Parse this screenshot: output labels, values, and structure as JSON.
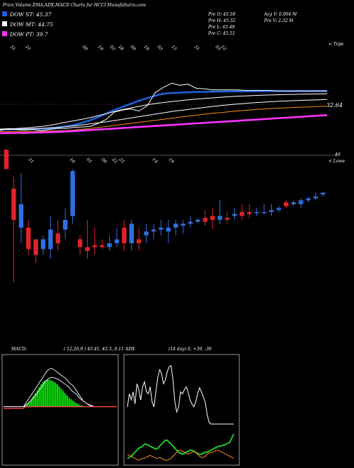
{
  "header": {
    "title": "Price,Volume,EMA,ADX,MACD Charts for HCCI MunafaSutra.com",
    "legend": [
      {
        "label": "DOW ST: 45.37",
        "color": "#1f5fd9"
      },
      {
        "label": "DOW MT: 44.75",
        "color": "#ffffff"
      },
      {
        "label": "DOW PT: 39.7",
        "color": "#ff33ff"
      }
    ],
    "prev": [
      "Pre  O: 45.50",
      "Pre  H: 45.52",
      "Pre  L: 45.49",
      "Pre  C: 45.51"
    ],
    "avg": [
      "Avg V: 0.004  M",
      "Pre  V: 2.32  M"
    ]
  },
  "top_panel": {
    "edge_label": "< Tope",
    "value_label": "32.64",
    "date_labels": [
      "31",
      "21",
      "09",
      "19",
      "03",
      "28",
      "09",
      "19",
      "03",
      "15",
      "31",
      "03",
      "12"
    ]
  },
  "price_panel": {
    "edge_label": "< Lowe",
    "level_label": "46",
    "date_labels": [
      "21",
      "16",
      "01",
      "06",
      "22",
      "25",
      "14",
      "19"
    ]
  },
  "macd": {
    "label": "MACD:",
    "values": "( 12,26,9 ) 45.41,  45.3,  0.11"
  },
  "adx": {
    "label": "ADX",
    "values": "(14  day) 0,  +39,  -39"
  },
  "chart_data": [
    {
      "type": "line",
      "name": "EMA panel",
      "series": [
        {
          "color": "#1f5fd9",
          "values": [
            0.0,
            0.2,
            0.4,
            0.5,
            0.8,
            1.5,
            2.5,
            4,
            6,
            9,
            13,
            18,
            24,
            31,
            38,
            44,
            50,
            56,
            61,
            66,
            69.8,
            70.8,
            71.6,
            72.3,
            72.9,
            73.3,
            73.6,
            73.8,
            74.0,
            74.1,
            74.2,
            74.3,
            74.4,
            74.5,
            74.5,
            74.6,
            74.6,
            74.7,
            74.7,
            74.8,
            74.8
          ]
        },
        {
          "color": "#ffffff",
          "values": [
            1,
            1.5,
            2,
            3,
            4.5,
            6,
            8,
            11,
            14,
            17,
            20,
            23,
            27,
            31,
            35,
            39,
            42,
            45,
            48,
            50.5,
            52.5,
            54.3,
            56,
            57.6,
            59,
            60.3,
            61.5,
            62.7,
            63.7,
            64.6,
            65.4,
            66.1,
            66.7,
            67.2,
            67.6,
            68,
            68.3,
            68.6,
            68.9,
            69.1,
            69.3
          ]
        },
        {
          "color": "#ffffff",
          "values": [
            0,
            0.3,
            0.6,
            1,
            1.5,
            2.2,
            3,
            4,
            5.3,
            7,
            9,
            11,
            13,
            15,
            17.5,
            20,
            22.5,
            25,
            27.5,
            30,
            32.5,
            35,
            37,
            39,
            41,
            43,
            44.8,
            46.5,
            48,
            49.5,
            50.8,
            52,
            53,
            54,
            54.8,
            55.5,
            56.2,
            56.8,
            57.3,
            57.8,
            58.3
          ]
        },
        {
          "color": "#ff8c1a",
          "values": [
            -4,
            -4,
            -4,
            -4,
            -4,
            -3.5,
            -3,
            -2.5,
            -2,
            -1,
            0.5,
            2,
            4,
            6,
            8,
            10,
            12,
            14,
            16,
            18,
            20,
            22,
            24,
            26,
            28,
            30,
            31.5,
            33,
            34.5,
            36,
            37.3,
            38.5,
            39.6,
            40.6,
            41.5,
            42.3,
            43,
            43.6,
            44.2,
            44.8,
            45.3
          ]
        },
        {
          "color": "#ff33ff",
          "values": [
            -7,
            -6.8,
            -6.6,
            -6.4,
            -6,
            -5.6,
            -5.2,
            -4.6,
            -4,
            -3,
            -2,
            -1,
            0,
            1,
            2,
            3,
            4,
            5,
            6,
            7,
            8,
            9,
            10,
            11,
            12,
            13,
            14,
            15,
            16,
            17,
            18,
            19,
            20,
            21,
            22,
            23,
            24,
            25,
            26,
            27,
            28
          ]
        },
        {
          "color": "#ffffff",
          "values": [
            -2,
            2,
            0,
            -1,
            0,
            -2,
            0,
            2,
            2,
            4,
            5,
            6,
            12,
            20,
            34,
            38,
            40,
            36,
            46,
            72,
            82,
            90,
            86,
            88,
            80,
            79,
            77,
            77,
            77,
            77,
            76,
            76,
            76,
            76,
            75,
            75,
            75,
            75,
            75,
            75,
            75
          ]
        }
      ],
      "ylim": [
        -10,
        100
      ]
    },
    {
      "type": "candlestick",
      "name": "Price panel",
      "candles": [
        {
          "o": 66,
          "c": 76,
          "h": 76,
          "l": 66,
          "color": "red"
        },
        {
          "o": 56,
          "c": 40,
          "h": 62,
          "l": 8,
          "color": "red"
        },
        {
          "o": 36,
          "c": 48,
          "h": 64,
          "l": 28,
          "color": "blue"
        },
        {
          "o": 36,
          "c": 25,
          "h": 40,
          "l": 22,
          "color": "red"
        },
        {
          "o": 22,
          "c": 30,
          "h": 30,
          "l": 18,
          "color": "red"
        },
        {
          "o": 25,
          "c": 30,
          "h": 32,
          "l": 22,
          "color": "blue"
        },
        {
          "o": 25,
          "c": 35,
          "h": 42,
          "l": 20,
          "color": "blue"
        },
        {
          "o": 28,
          "c": 33,
          "h": 40,
          "l": 24,
          "color": "red"
        },
        {
          "o": 35,
          "c": 40,
          "h": 46,
          "l": 30,
          "color": "blue"
        },
        {
          "o": 42,
          "c": 65,
          "h": 66,
          "l": 38,
          "color": "blue"
        },
        {
          "o": 30,
          "c": 26,
          "h": 32,
          "l": 22,
          "color": "red"
        },
        {
          "o": 24,
          "c": 26,
          "h": 40,
          "l": 20,
          "color": "red"
        },
        {
          "o": 26,
          "c": 27,
          "h": 36,
          "l": 22,
          "color": "red"
        },
        {
          "o": 27,
          "c": 26,
          "h": 30,
          "l": 25,
          "color": "red"
        },
        {
          "o": 26,
          "c": 28,
          "h": 32,
          "l": 24,
          "color": "blue"
        },
        {
          "o": 28,
          "c": 30,
          "h": 36,
          "l": 26,
          "color": "blue"
        },
        {
          "o": 36,
          "c": 28,
          "h": 40,
          "l": 24,
          "color": "red"
        },
        {
          "o": 28,
          "c": 38,
          "h": 40,
          "l": 24,
          "color": "blue"
        },
        {
          "o": 28,
          "c": 30,
          "h": 36,
          "l": 24,
          "color": "red"
        },
        {
          "o": 32,
          "c": 34,
          "h": 38,
          "l": 28,
          "color": "blue"
        },
        {
          "o": 34,
          "c": 35,
          "h": 38,
          "l": 30,
          "color": "blue"
        },
        {
          "o": 35,
          "c": 36,
          "h": 40,
          "l": 32,
          "color": "blue"
        },
        {
          "o": 34,
          "c": 36,
          "h": 40,
          "l": 28,
          "color": "blue"
        },
        {
          "o": 36,
          "c": 38,
          "h": 40,
          "l": 32,
          "color": "blue"
        },
        {
          "o": 37,
          "c": 38,
          "h": 40,
          "l": 33,
          "color": "blue"
        },
        {
          "o": 38,
          "c": 39,
          "h": 42,
          "l": 36,
          "color": "blue"
        },
        {
          "o": 40,
          "c": 39,
          "h": 41,
          "l": 38,
          "color": "blue"
        },
        {
          "o": 41,
          "c": 39,
          "h": 45,
          "l": 37,
          "color": "red"
        },
        {
          "o": 40,
          "c": 42,
          "h": 46,
          "l": 35,
          "color": "red"
        },
        {
          "o": 40,
          "c": 42,
          "h": 50,
          "l": 38,
          "color": "blue"
        },
        {
          "o": 41,
          "c": 40,
          "h": 44,
          "l": 38,
          "color": "red"
        },
        {
          "o": 42,
          "c": 43,
          "h": 46,
          "l": 40,
          "color": "blue"
        },
        {
          "o": 44,
          "c": 42,
          "h": 48,
          "l": 40,
          "color": "red"
        },
        {
          "o": 43,
          "c": 44,
          "h": 48,
          "l": 41,
          "color": "red"
        },
        {
          "o": 44,
          "c": 44,
          "h": 46,
          "l": 42,
          "color": "blue"
        },
        {
          "o": 44,
          "c": 44,
          "h": 48,
          "l": 43,
          "color": "blue"
        },
        {
          "o": 44,
          "c": 45,
          "h": 48,
          "l": 42,
          "color": "blue"
        },
        {
          "o": 45,
          "c": 46,
          "h": 47,
          "l": 44,
          "color": "blue"
        },
        {
          "o": 47,
          "c": 49,
          "h": 50,
          "l": 46,
          "color": "red"
        },
        {
          "o": 48,
          "c": 49,
          "h": 50,
          "l": 47,
          "color": "blue"
        },
        {
          "o": 48,
          "c": 50,
          "h": 51,
          "l": 46,
          "color": "blue"
        },
        {
          "o": 50,
          "c": 51,
          "h": 52,
          "l": 49,
          "color": "blue"
        },
        {
          "o": 51,
          "c": 52,
          "h": 54,
          "l": 50,
          "color": "blue"
        },
        {
          "o": 53,
          "c": 54,
          "h": 54,
          "l": 52,
          "color": "blue"
        }
      ],
      "ylim": [
        0,
        80
      ]
    },
    {
      "type": "area",
      "name": "MACD panel",
      "series": [
        {
          "color": "#00dd00",
          "values": [
            0,
            0,
            0,
            0,
            0,
            0,
            0,
            0,
            0,
            0,
            0,
            1,
            2,
            3.5,
            5,
            7,
            9,
            11,
            13,
            15,
            16.5,
            17.5,
            18,
            18,
            17.5,
            17,
            16,
            15,
            13.5,
            12,
            10.5,
            9,
            7.5,
            6,
            5,
            4,
            3,
            2.2,
            1.5,
            1,
            0.6,
            0.3,
            0.15,
            0.05,
            0,
            0,
            0,
            0,
            0,
            0,
            0,
            0,
            0,
            0,
            0,
            0,
            0,
            0
          ]
        },
        {
          "color": "#ffffff",
          "values": [
            0,
            0,
            0,
            0,
            0,
            0,
            0,
            0,
            0,
            0,
            0,
            2,
            4,
            6,
            8,
            10,
            12,
            14,
            16,
            18,
            20,
            22,
            24,
            25,
            25.5,
            25,
            24,
            23,
            22,
            21,
            20,
            19,
            18,
            16,
            15,
            14,
            12,
            10,
            8,
            6,
            4,
            3,
            2,
            1,
            0.5,
            0,
            0,
            0,
            0,
            0,
            0,
            0,
            0,
            0,
            0,
            0,
            0,
            0
          ]
        },
        {
          "color": "#ffffff",
          "values": [
            0,
            0,
            0,
            0,
            0,
            0,
            0,
            0,
            0,
            0,
            0,
            1,
            2,
            3,
            4.5,
            6,
            7.5,
            9,
            11,
            13,
            15,
            17,
            18,
            19,
            19.5,
            19.5,
            19,
            18.5,
            18,
            17,
            16,
            15,
            14,
            13,
            11,
            10,
            9,
            8,
            6,
            5,
            4,
            3,
            2,
            1.5,
            1,
            0.5,
            0,
            0,
            0,
            0,
            0,
            0,
            0,
            0,
            0,
            0,
            0,
            0
          ]
        },
        {
          "color": "#ff4444",
          "values": [
            -1,
            -1,
            -1,
            -1,
            -1,
            -1,
            -1,
            -1,
            -1,
            -1,
            -1,
            0,
            0,
            0,
            0,
            0,
            0,
            0,
            0,
            0,
            0,
            0,
            0,
            0,
            0,
            0,
            0,
            0,
            0,
            0,
            0,
            0,
            0,
            0,
            0,
            0,
            0,
            0,
            0,
            0,
            0,
            0,
            0,
            0,
            0,
            0,
            0,
            0,
            0,
            0,
            0,
            0,
            0,
            0,
            0,
            0,
            0,
            0
          ]
        }
      ],
      "ylim": [
        -3,
        30
      ]
    },
    {
      "type": "line",
      "name": "ADX panel",
      "series": [
        {
          "color": "#ffffff",
          "values": [
            55,
            68,
            62,
            70,
            58,
            78,
            72,
            62,
            75,
            80,
            70,
            68,
            75,
            60,
            55,
            70,
            85,
            92,
            88,
            78,
            82,
            90,
            95,
            96,
            82,
            60,
            50,
            55,
            70,
            68,
            72,
            75,
            70,
            62,
            58,
            55,
            60,
            68,
            74,
            70,
            65,
            60,
            48,
            40,
            38,
            38,
            38,
            38,
            38,
            38,
            38,
            38,
            38,
            38,
            38,
            38,
            38
          ]
        },
        {
          "color": "#22dd22",
          "values": [
            4,
            5,
            6,
            8,
            10,
            12,
            14,
            15,
            16,
            18,
            18,
            17,
            16,
            15,
            14,
            13,
            14,
            16,
            18,
            20,
            22,
            22,
            20,
            18,
            16,
            14,
            12,
            10,
            9,
            8,
            9,
            10,
            11,
            12,
            12,
            11,
            10,
            9,
            8,
            8,
            9,
            10,
            10,
            11,
            12,
            13,
            14,
            15,
            16,
            16,
            17,
            17,
            18,
            19,
            20,
            24,
            28
          ]
        },
        {
          "color": "#ff8c1a",
          "values": [
            8,
            7,
            6,
            5,
            4,
            3,
            2,
            3,
            4,
            4,
            5,
            6,
            7,
            6,
            5,
            4,
            4,
            5,
            4,
            3,
            2,
            2,
            3,
            4,
            6,
            8,
            10,
            12,
            12,
            11,
            10,
            9,
            8,
            9,
            10,
            11,
            10,
            8,
            6,
            5,
            5,
            6,
            8,
            9,
            10,
            10,
            11,
            12,
            12,
            11,
            10,
            9,
            8,
            7,
            6,
            5,
            4
          ]
        }
      ],
      "ylim": [
        0,
        100
      ]
    }
  ]
}
